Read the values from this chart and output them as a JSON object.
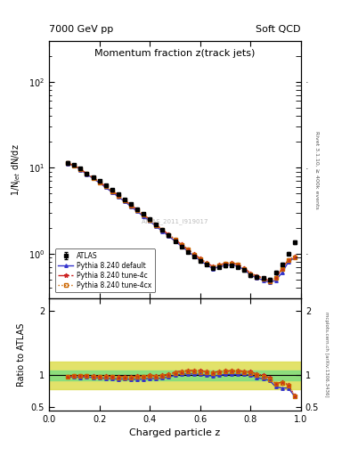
{
  "title_main": "Momentum fraction z(track jets)",
  "top_left_label": "7000 GeV pp",
  "top_right_label": "Soft QCD",
  "right_label_top": "Rivet 3.1.10, ≥ 400k events",
  "right_label_bot": "mcplots.cern.ch [arXiv:1306.3436]",
  "watermark": "ATLAS_2011_I919017",
  "ylabel_main": "1/N$_{jet}$ dN/dz",
  "ylabel_ratio": "Ratio to ATLAS",
  "xlabel": "Charged particle z",
  "legend_entries": [
    "ATLAS",
    "Pythia 8.240 default",
    "Pythia 8.240 tune-4c",
    "Pythia 8.240 tune-4cx"
  ],
  "z_values": [
    0.075,
    0.1,
    0.125,
    0.15,
    0.175,
    0.2,
    0.225,
    0.25,
    0.275,
    0.3,
    0.325,
    0.35,
    0.375,
    0.4,
    0.425,
    0.45,
    0.475,
    0.5,
    0.525,
    0.55,
    0.575,
    0.6,
    0.625,
    0.65,
    0.675,
    0.7,
    0.725,
    0.75,
    0.775,
    0.8,
    0.825,
    0.85,
    0.875,
    0.9,
    0.925,
    0.95,
    0.975
  ],
  "atlas_y": [
    11.5,
    10.8,
    9.8,
    8.6,
    7.8,
    7.0,
    6.2,
    5.5,
    4.9,
    4.3,
    3.8,
    3.3,
    2.9,
    2.5,
    2.2,
    1.9,
    1.65,
    1.4,
    1.2,
    1.05,
    0.92,
    0.82,
    0.74,
    0.68,
    0.7,
    0.72,
    0.73,
    0.7,
    0.64,
    0.56,
    0.54,
    0.52,
    0.5,
    0.6,
    0.75,
    1.0,
    1.35
  ],
  "atlas_yerr": [
    0.3,
    0.25,
    0.22,
    0.18,
    0.16,
    0.14,
    0.12,
    0.1,
    0.09,
    0.08,
    0.07,
    0.06,
    0.06,
    0.05,
    0.05,
    0.04,
    0.04,
    0.03,
    0.03,
    0.03,
    0.025,
    0.02,
    0.02,
    0.02,
    0.02,
    0.02,
    0.02,
    0.02,
    0.02,
    0.02,
    0.02,
    0.02,
    0.02,
    0.025,
    0.03,
    0.04,
    0.06
  ],
  "pythia_default_y": [
    11.2,
    10.5,
    9.5,
    8.4,
    7.5,
    6.7,
    5.9,
    5.2,
    4.6,
    4.05,
    3.55,
    3.1,
    2.72,
    2.38,
    2.08,
    1.82,
    1.6,
    1.4,
    1.22,
    1.07,
    0.94,
    0.83,
    0.74,
    0.67,
    0.7,
    0.73,
    0.74,
    0.71,
    0.65,
    0.56,
    0.52,
    0.49,
    0.46,
    0.49,
    0.6,
    0.8,
    0.9
  ],
  "pythia_4c_y": [
    11.3,
    10.7,
    9.7,
    8.5,
    7.7,
    6.85,
    6.1,
    5.4,
    4.8,
    4.2,
    3.7,
    3.25,
    2.85,
    2.5,
    2.18,
    1.9,
    1.67,
    1.47,
    1.28,
    1.13,
    0.99,
    0.88,
    0.78,
    0.71,
    0.74,
    0.77,
    0.78,
    0.75,
    0.68,
    0.59,
    0.55,
    0.52,
    0.48,
    0.52,
    0.67,
    0.85,
    0.92
  ],
  "pythia_4cx_y": [
    11.3,
    10.65,
    9.65,
    8.5,
    7.65,
    6.8,
    6.05,
    5.35,
    4.75,
    4.15,
    3.65,
    3.2,
    2.82,
    2.47,
    2.15,
    1.88,
    1.65,
    1.45,
    1.26,
    1.11,
    0.97,
    0.86,
    0.77,
    0.7,
    0.73,
    0.76,
    0.77,
    0.74,
    0.67,
    0.58,
    0.54,
    0.51,
    0.47,
    0.52,
    0.66,
    0.84,
    0.91
  ],
  "atlas_color": "#000000",
  "pythia_default_color": "#3333cc",
  "pythia_4c_color": "#cc2222",
  "pythia_4cx_color": "#cc6600",
  "band_green_lo": 0.92,
  "band_green_hi": 1.08,
  "band_yellow_lo": 0.78,
  "band_yellow_hi": 1.22,
  "band_green_color": "#80dd80",
  "band_yellow_color": "#dddd50",
  "ylim_main": [
    0.3,
    300
  ],
  "ylim_ratio": [
    0.45,
    2.2
  ],
  "xlim": [
    0.0,
    1.0
  ]
}
